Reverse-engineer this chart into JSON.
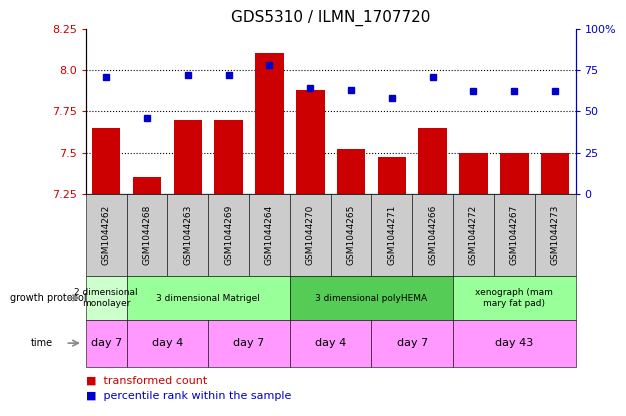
{
  "title": "GDS5310 / ILMN_1707720",
  "samples": [
    "GSM1044262",
    "GSM1044268",
    "GSM1044263",
    "GSM1044269",
    "GSM1044264",
    "GSM1044270",
    "GSM1044265",
    "GSM1044271",
    "GSM1044266",
    "GSM1044272",
    "GSM1044267",
    "GSM1044273"
  ],
  "bar_values": [
    7.65,
    7.35,
    7.7,
    7.7,
    8.1,
    7.88,
    7.52,
    7.47,
    7.65,
    7.5,
    7.5,
    7.5
  ],
  "dot_values": [
    71,
    46,
    72,
    72,
    78,
    64,
    63,
    58,
    71,
    62,
    62,
    62
  ],
  "ylim": [
    7.25,
    8.25
  ],
  "y2lim": [
    0,
    100
  ],
  "yticks": [
    7.25,
    7.5,
    7.75,
    8.0,
    8.25
  ],
  "y2ticks": [
    0,
    25,
    50,
    75,
    100
  ],
  "bar_color": "#cc0000",
  "dot_color": "#0000cc",
  "dot_color2": "#3333ff",
  "gridline_color": "#000000",
  "sample_box_color": "#cccccc",
  "gp_colors": [
    "#ccffcc",
    "#99ff99",
    "#55cc55",
    "#99ff99"
  ],
  "time_color": "#ff99ff",
  "growth_protocol_groups": [
    {
      "label": "2 dimensional\nmonolayer",
      "start": 0,
      "end": 1
    },
    {
      "label": "3 dimensional Matrigel",
      "start": 1,
      "end": 5
    },
    {
      "label": "3 dimensional polyHEMA",
      "start": 5,
      "end": 9
    },
    {
      "label": "xenograph (mam\nmary fat pad)",
      "start": 9,
      "end": 12
    }
  ],
  "time_groups": [
    {
      "label": "day 7",
      "start": 0,
      "end": 1
    },
    {
      "label": "day 4",
      "start": 1,
      "end": 3
    },
    {
      "label": "day 7",
      "start": 3,
      "end": 5
    },
    {
      "label": "day 4",
      "start": 5,
      "end": 7
    },
    {
      "label": "day 7",
      "start": 7,
      "end": 9
    },
    {
      "label": "day 43",
      "start": 9,
      "end": 12
    }
  ]
}
